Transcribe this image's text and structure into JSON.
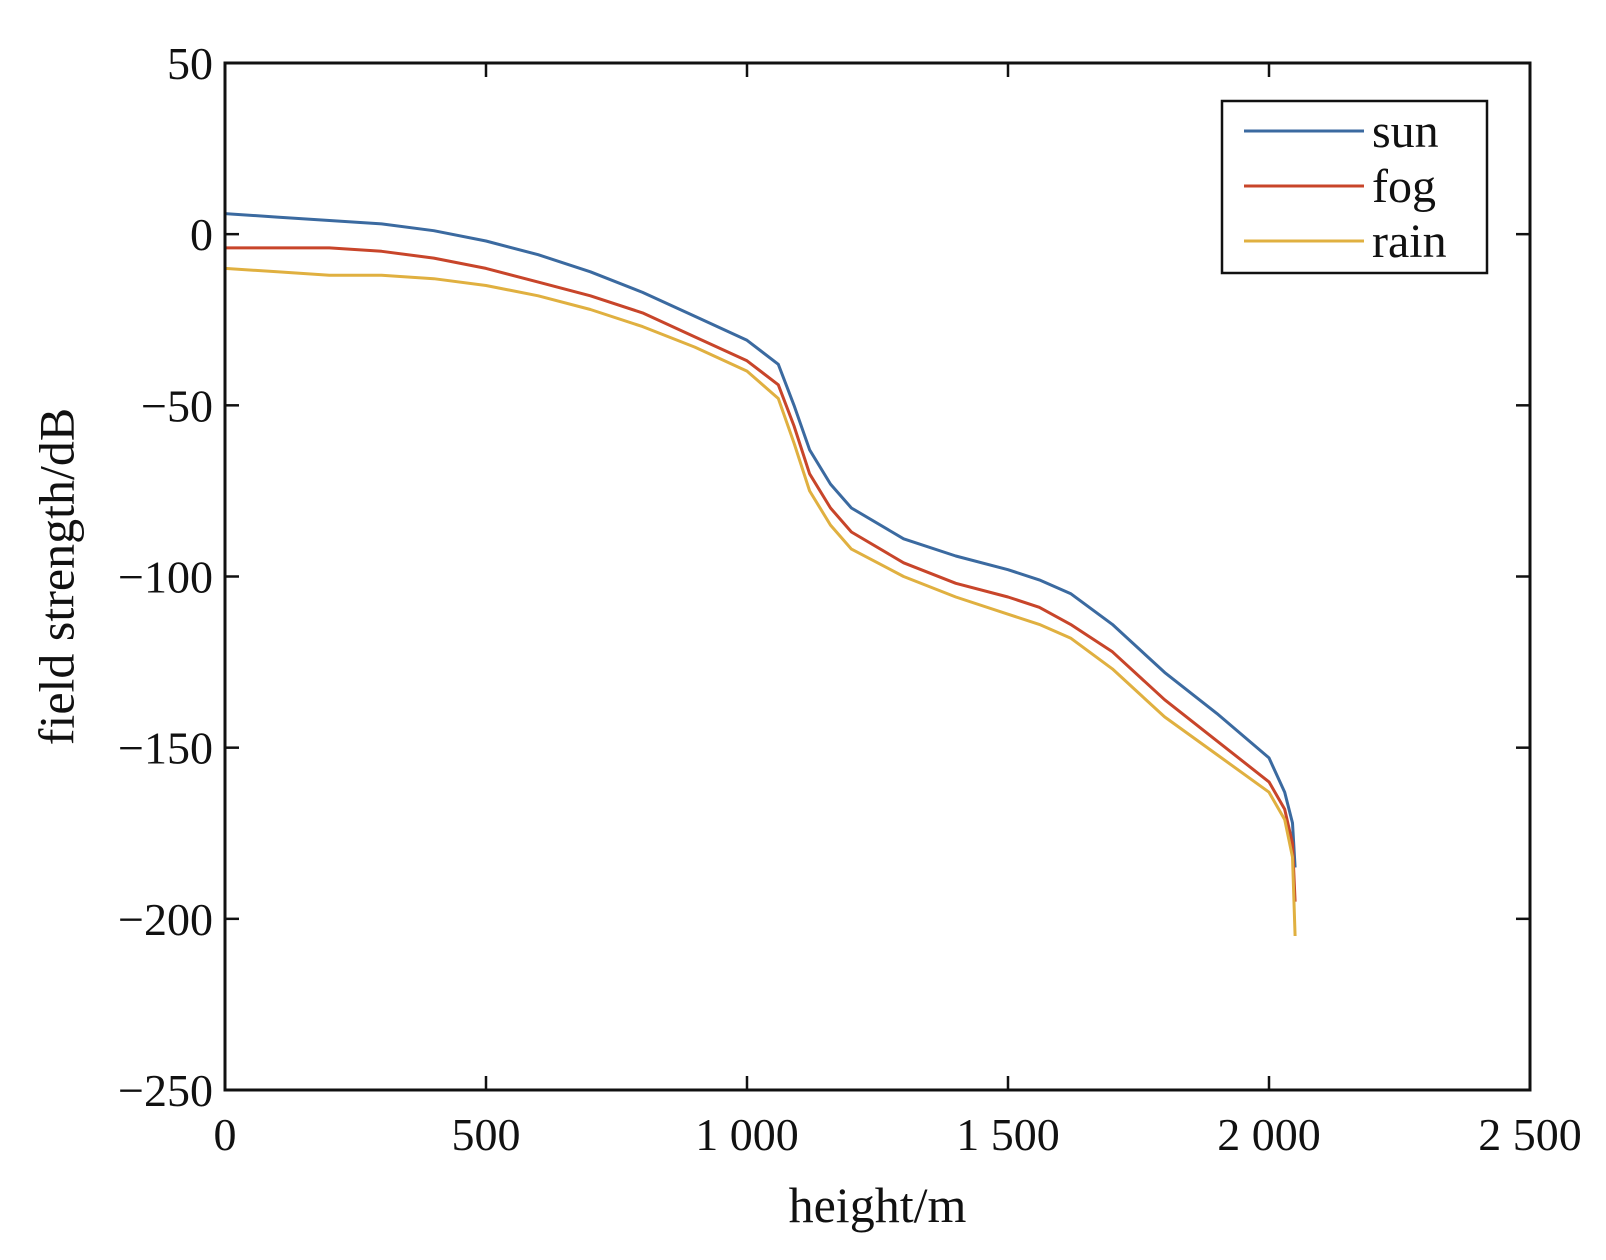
{
  "chart_data": {
    "type": "line",
    "title": "",
    "xlabel": "height/m",
    "ylabel": "field strength/dB",
    "xlim": [
      0,
      2500
    ],
    "ylim": [
      -250,
      50
    ],
    "xticks": [
      0,
      500,
      1000,
      1500,
      2000,
      2500
    ],
    "xtick_labels": [
      "0",
      "500",
      "1 000",
      "1 500",
      "2 000",
      "2 500"
    ],
    "yticks": [
      50,
      0,
      -50,
      -100,
      -150,
      -200,
      -250
    ],
    "ytick_labels": [
      "50",
      "0",
      "−50",
      "−100",
      "−150",
      "−200",
      "−250"
    ],
    "grid": false,
    "legend_position": "top-right",
    "series": [
      {
        "name": "sun",
        "color": "#3b6aa0",
        "x": [
          0,
          100,
          200,
          300,
          400,
          500,
          600,
          700,
          800,
          900,
          1000,
          1060,
          1090,
          1120,
          1160,
          1200,
          1300,
          1400,
          1500,
          1560,
          1620,
          1700,
          1800,
          1900,
          2000,
          2030,
          2045,
          2050
        ],
        "y": [
          6,
          5,
          4,
          3,
          1,
          -2,
          -6,
          -11,
          -17,
          -24,
          -31,
          -38,
          -50,
          -63,
          -73,
          -80,
          -89,
          -94,
          -98,
          -101,
          -105,
          -114,
          -128,
          -140,
          -153,
          -163,
          -172,
          -185
        ]
      },
      {
        "name": "fog",
        "color": "#c8452a",
        "x": [
          0,
          100,
          200,
          300,
          400,
          500,
          600,
          700,
          800,
          900,
          1000,
          1060,
          1090,
          1120,
          1160,
          1200,
          1300,
          1400,
          1500,
          1560,
          1620,
          1700,
          1800,
          1900,
          2000,
          2030,
          2045,
          2050
        ],
        "y": [
          -4,
          -4,
          -4,
          -5,
          -7,
          -10,
          -14,
          -18,
          -23,
          -30,
          -37,
          -44,
          -56,
          -70,
          -80,
          -87,
          -96,
          -102,
          -106,
          -109,
          -114,
          -122,
          -136,
          -148,
          -160,
          -168,
          -178,
          -195
        ]
      },
      {
        "name": "rain",
        "color": "#e0b040",
        "x": [
          0,
          100,
          200,
          300,
          400,
          500,
          600,
          700,
          800,
          900,
          1000,
          1060,
          1090,
          1120,
          1160,
          1200,
          1300,
          1400,
          1500,
          1560,
          1620,
          1700,
          1800,
          1900,
          2000,
          2030,
          2045,
          2050
        ],
        "y": [
          -10,
          -11,
          -12,
          -12,
          -13,
          -15,
          -18,
          -22,
          -27,
          -33,
          -40,
          -48,
          -61,
          -75,
          -85,
          -92,
          -100,
          -106,
          -111,
          -114,
          -118,
          -127,
          -141,
          -152,
          -163,
          -171,
          -182,
          -205
        ]
      }
    ]
  }
}
